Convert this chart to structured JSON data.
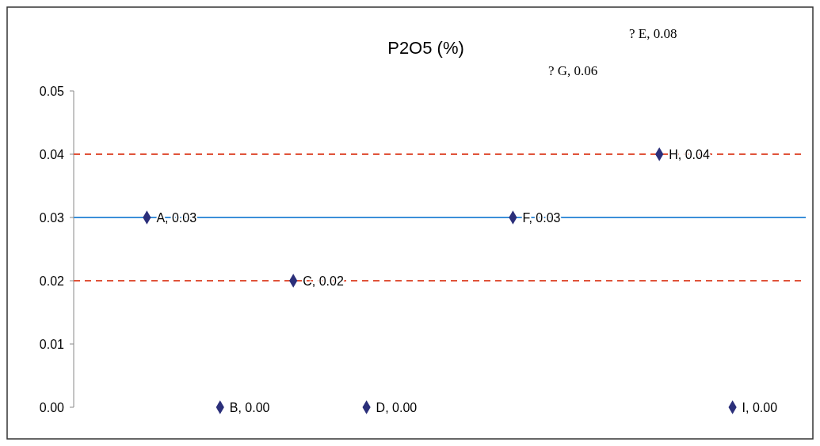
{
  "chart_data": {
    "type": "scatter",
    "title": "P2O5 (%)",
    "categories": [
      null,
      null,
      null,
      null,
      null,
      null,
      null,
      null,
      null
    ],
    "values": [
      0.03,
      0,
      0.02,
      0,
      null,
      0.03,
      null,
      0.04,
      0
    ],
    "value_labels": [
      "A, 0.03",
      "B, 0.00",
      "C, 0.02",
      "D, 0.00",
      null,
      "F, 0.03",
      null,
      "H, 0.04",
      "I, 0.00"
    ],
    "color": "#2b2f7a",
    "marker": "diamond",
    "ylim": [
      0,
      0.05
    ],
    "yticks": [
      {
        "value": 0,
        "label": "0.00"
      },
      {
        "value": 0.01,
        "label": "0.01"
      },
      {
        "value": 0.02,
        "label": "0.02"
      },
      {
        "value": 0.03,
        "label": "0.03"
      },
      {
        "value": 0.04,
        "label": "0.04"
      },
      {
        "value": 0.05,
        "label": "0.05"
      }
    ],
    "ref_lines": [
      {
        "axis": "y",
        "value": 0.04,
        "color": "#e0533a",
        "line_style": "dashed"
      },
      {
        "axis": "y",
        "value": 0.03,
        "color": "#3b8fd9",
        "line_style": "solid"
      },
      {
        "axis": "y",
        "value": 0.02,
        "color": "#e0533a",
        "line_style": "dashed"
      }
    ],
    "annotations": [
      "? E, 0.08",
      "? G, 0.06"
    ],
    "grid": false
  }
}
